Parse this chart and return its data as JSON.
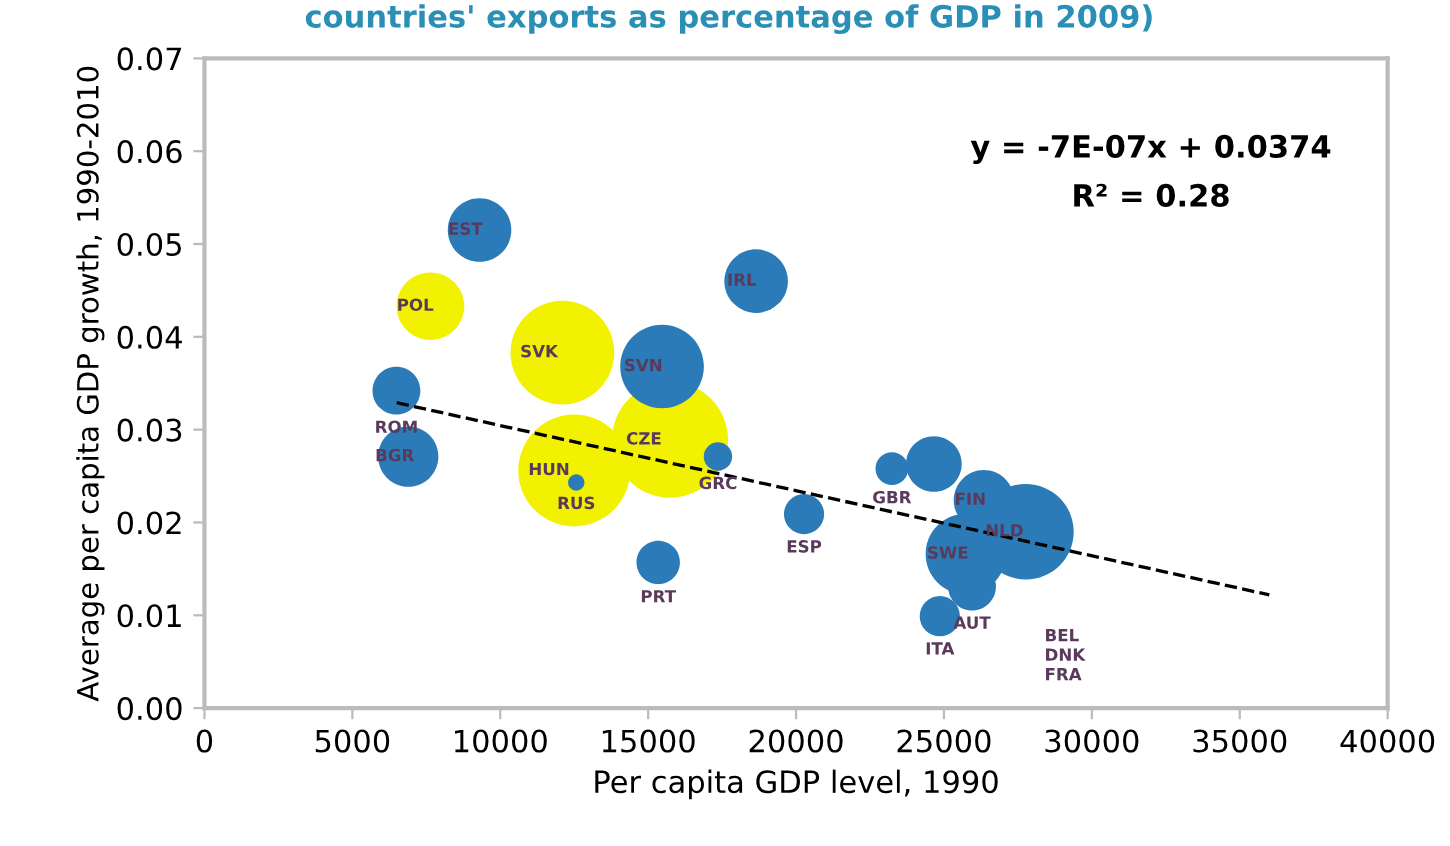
{
  "chart_data": {
    "type": "bubble",
    "subtitle": "countries' exports as percentage of GDP in 2009)",
    "xlabel": "Per capita GDP level, 1990",
    "ylabel": "Average per capita GDP growth, 1990-2010",
    "xlim": [
      0,
      40000
    ],
    "xticks": [
      0,
      5000,
      10000,
      15000,
      20000,
      25000,
      30000,
      35000,
      40000
    ],
    "ylim": [
      0,
      0.07
    ],
    "yticks": [
      {
        "value": 0,
        "label": "0.00"
      },
      {
        "value": 0.01,
        "label": "0.01"
      },
      {
        "value": 0.02,
        "label": "0.02"
      },
      {
        "value": 0.03,
        "label": "0.03"
      },
      {
        "value": 0.04,
        "label": "0.04"
      },
      {
        "value": 0.05,
        "label": "0.05"
      },
      {
        "value": 0.06,
        "label": "0.06"
      },
      {
        "value": 0.07,
        "label": "0.07"
      }
    ],
    "grid": false,
    "series": [
      {
        "x": [
          12100,
          15740,
          15470,
          12500,
          12570,
          9300,
          18650,
          7640,
          6490,
          6890,
          17360,
          15340,
          20270,
          23240,
          24660,
          27770,
          26350,
          25740,
          25950,
          24860
        ],
        "values": [
          0.0383,
          0.0289,
          0.0368,
          0.0256,
          0.0243,
          0.0515,
          0.046,
          0.0433,
          0.0342,
          0.0271,
          0.0271,
          0.0157,
          0.0209,
          0.0258,
          0.0263,
          0.019,
          0.0224,
          0.0166,
          0.0131,
          0.0099
        ],
        "sizes": [
          0.8,
          1,
          0.52,
          0.93,
          0.02,
          0.3,
          0.3,
          0.34,
          0.17,
          0.27,
          0.06,
          0.14,
          0.12,
          0.08,
          0.23,
          0.68,
          0.27,
          0.48,
          0.17,
          0.12
        ],
        "colors": [
          "#f2f200",
          "#f2f200",
          "#2b7bb9",
          "#f2f200",
          "#2b7bb9",
          "#2b7bb9",
          "#2b7bb9",
          "#f2f200",
          "#2b7bb9",
          "#2b7bb9",
          "#2b7bb9",
          "#2b7bb9",
          "#2b7bb9",
          "#2b7bb9",
          "#2b7bb9",
          "#2b7bb9",
          "#2b7bb9",
          "#2b7bb9",
          "#2b7bb9",
          "#2b7bb9"
        ]
      },
      {
        "type": "line",
        "x": [
          6500,
          36000
        ],
        "values": [
          0.0329,
          0.0122
        ],
        "color": "#000000",
        "line_style": "dashed"
      }
    ],
    "annotations": [
      "y = -7E-07x + 0.0374",
      "R² = 0.28",
      "BEL",
      "DNK",
      "FRA",
      {
        "text": "EST",
        "x": 9300,
        "y": 0.0515
      },
      {
        "text": "IRL",
        "x": 18650,
        "y": 0.046
      },
      {
        "text": "POL",
        "x": 7640,
        "y": 0.0433
      },
      {
        "text": "SVK",
        "x": 12100,
        "y": 0.0383
      },
      {
        "text": "SVN",
        "x": 15470,
        "y": 0.0368
      },
      {
        "text": "ROM",
        "x": 6490,
        "y": 0.0342
      },
      {
        "text": "BGR",
        "x": 6890,
        "y": 0.0271
      },
      {
        "text": "HUN",
        "x": 12500,
        "y": 0.0256
      },
      {
        "text": "RUS",
        "x": 12570,
        "y": 0.0243
      },
      {
        "text": "CZE",
        "x": 15740,
        "y": 0.0289
      },
      {
        "text": "GRC",
        "x": 17360,
        "y": 0.0271
      },
      {
        "text": "PRT",
        "x": 15340,
        "y": 0.0157
      },
      {
        "text": "ESP",
        "x": 20270,
        "y": 0.0209
      },
      {
        "text": "GBR",
        "x": 23240,
        "y": 0.0258
      },
      {
        "text": "FIN",
        "x": 26350,
        "y": 0.0224
      },
      {
        "text": "SWE",
        "x": 25740,
        "y": 0.0166
      },
      {
        "text": "NLD",
        "x": 27770,
        "y": 0.019
      },
      {
        "text": "AUT",
        "x": 25950,
        "y": 0.0131
      },
      {
        "text": "ITA",
        "x": 24860,
        "y": 0.0099
      }
    ]
  }
}
